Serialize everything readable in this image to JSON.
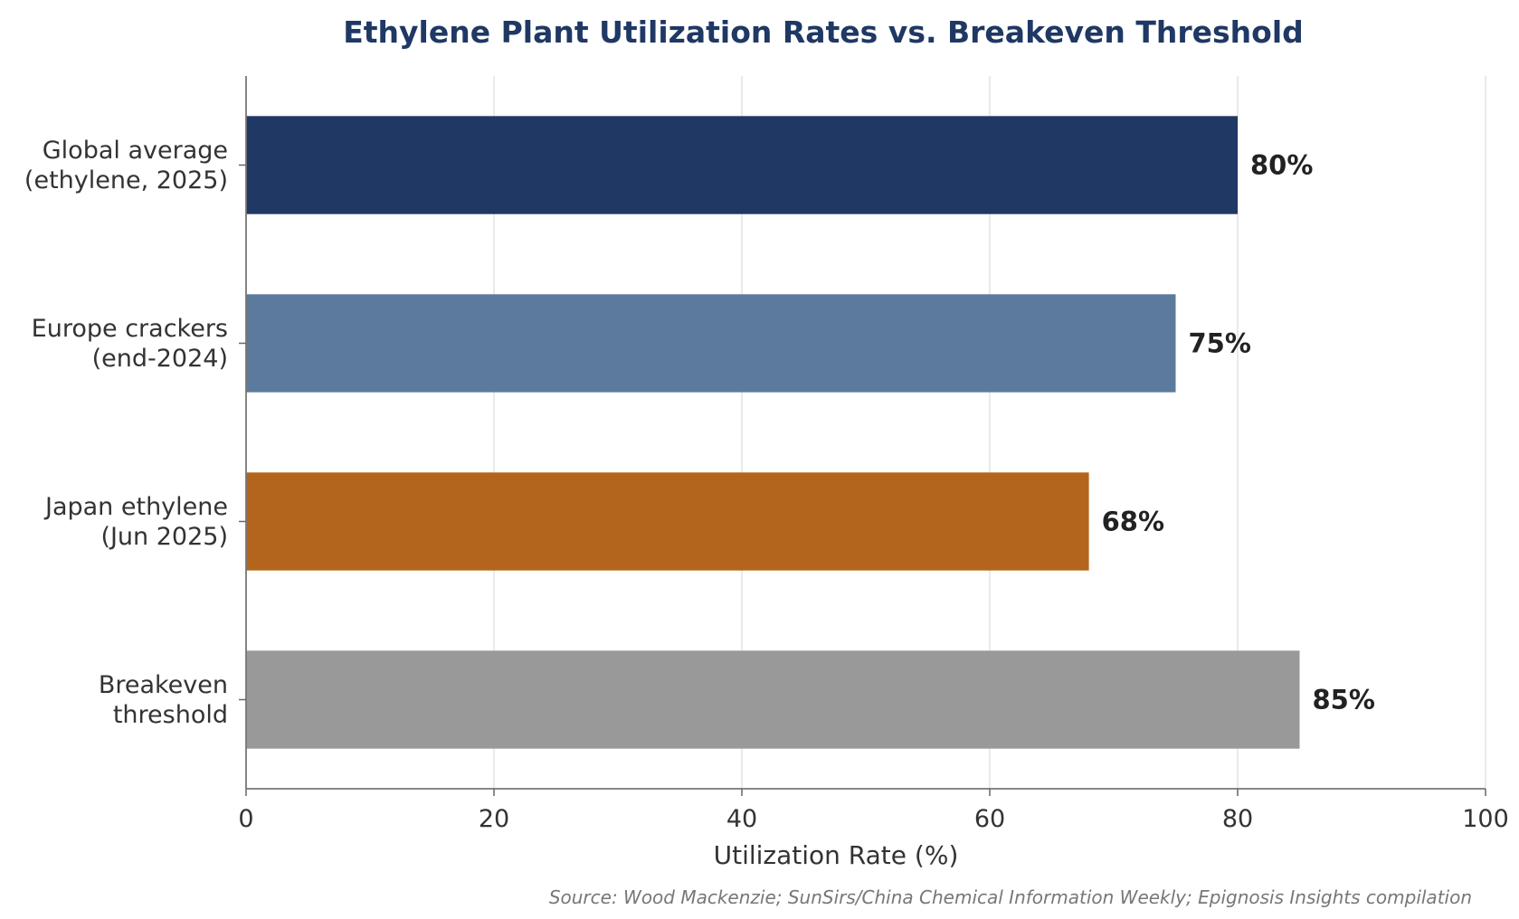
{
  "chart_data": {
    "type": "bar",
    "orientation": "horizontal",
    "title": "Ethylene Plant Utilization Rates vs. Breakeven Threshold",
    "xlabel": "Utilization Rate (%)",
    "ylabel": "",
    "xlim": [
      0,
      100
    ],
    "xticks": [
      "0",
      "20",
      "40",
      "60",
      "80",
      "100"
    ],
    "grid": "vertical",
    "categories": [
      [
        "Global average",
        "(ethylene, 2025)"
      ],
      [
        "Europe crackers",
        "(end-2024)"
      ],
      [
        "Japan ethylene",
        "(Jun 2025)"
      ],
      [
        "Breakeven",
        "threshold"
      ]
    ],
    "values": [
      80,
      75,
      68,
      85
    ],
    "value_labels": [
      "80%",
      "75%",
      "68%",
      "85%"
    ],
    "colors": [
      "#203864",
      "#5b7a9d",
      "#b3651e",
      "#999999"
    ],
    "source": "Source: Wood Mackenzie; SunSirs/China Chemical Information Weekly; Epignosis Insights compilation"
  }
}
